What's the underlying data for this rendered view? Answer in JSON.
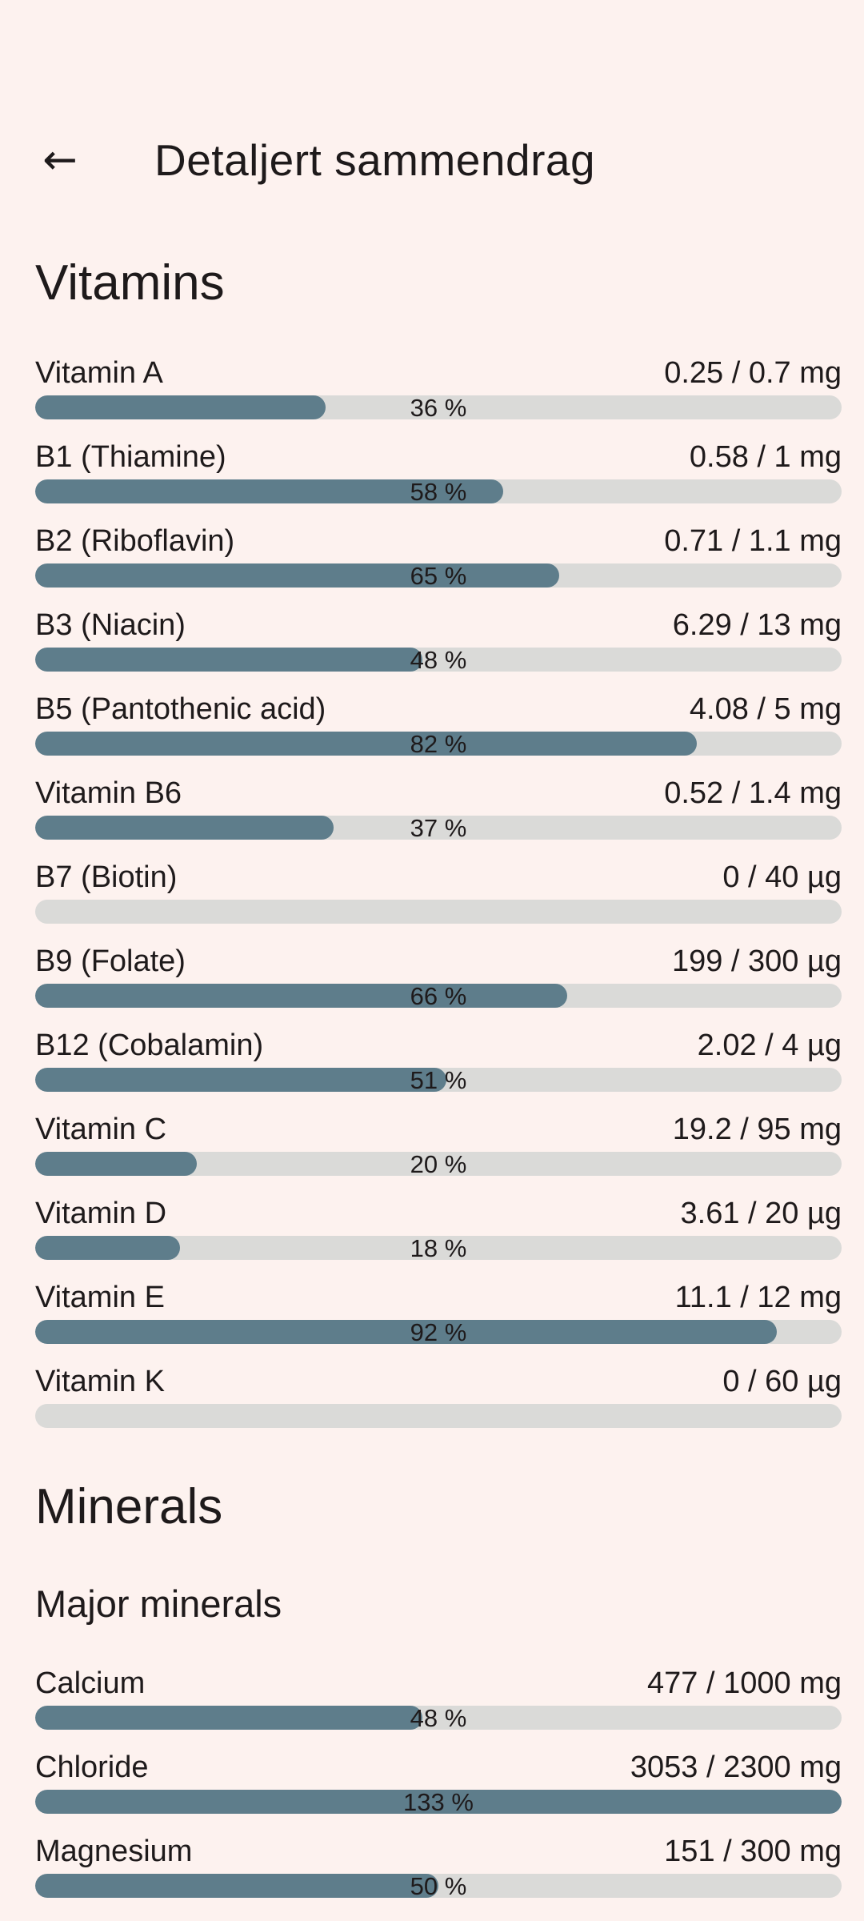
{
  "header": {
    "title": "Detaljert sammendrag",
    "back_icon": "arrow-left",
    "back_glyph": "←"
  },
  "colors": {
    "background": "#fdf2ef",
    "text": "#1e1a1b",
    "bar_fill": "#5e7d8b",
    "bar_track": "#dadad8"
  },
  "sections": [
    {
      "heading": "Vitamins",
      "rows": [
        {
          "name": "Vitamin A",
          "amount": "0.25 / 0.7 mg",
          "percent_label": "36 %",
          "fill_percent": 36
        },
        {
          "name": "B1 (Thiamine)",
          "amount": "0.58 / 1 mg",
          "percent_label": "58 %",
          "fill_percent": 58
        },
        {
          "name": "B2 (Riboflavin)",
          "amount": "0.71 / 1.1 mg",
          "percent_label": "65 %",
          "fill_percent": 65
        },
        {
          "name": "B3 (Niacin)",
          "amount": "6.29 / 13 mg",
          "percent_label": "48 %",
          "fill_percent": 48
        },
        {
          "name": "B5 (Pantothenic acid)",
          "amount": "4.08 / 5 mg",
          "percent_label": "82 %",
          "fill_percent": 82
        },
        {
          "name": "Vitamin B6",
          "amount": "0.52 / 1.4 mg",
          "percent_label": "37 %",
          "fill_percent": 37
        },
        {
          "name": "B7 (Biotin)",
          "amount": "0 / 40 µg",
          "percent_label": "",
          "fill_percent": 0
        },
        {
          "name": "B9 (Folate)",
          "amount": "199 / 300 µg",
          "percent_label": "66 %",
          "fill_percent": 66
        },
        {
          "name": "B12 (Cobalamin)",
          "amount": "2.02 / 4 µg",
          "percent_label": "51 %",
          "fill_percent": 51
        },
        {
          "name": "Vitamin C",
          "amount": "19.2 / 95 mg",
          "percent_label": "20 %",
          "fill_percent": 20
        },
        {
          "name": "Vitamin D",
          "amount": "3.61 / 20 µg",
          "percent_label": "18 %",
          "fill_percent": 18
        },
        {
          "name": "Vitamin E",
          "amount": "11.1 / 12 mg",
          "percent_label": "92 %",
          "fill_percent": 92
        },
        {
          "name": "Vitamin K",
          "amount": "0 / 60 µg",
          "percent_label": "",
          "fill_percent": 0
        }
      ]
    },
    {
      "heading": "Minerals",
      "subheading": "Major minerals",
      "rows": [
        {
          "name": "Calcium",
          "amount": "477 / 1000 mg",
          "percent_label": "48 %",
          "fill_percent": 48
        },
        {
          "name": "Chloride",
          "amount": "3053 / 2300 mg",
          "percent_label": "133 %",
          "fill_percent": 100
        },
        {
          "name": "Magnesium",
          "amount": "151 / 300 mg",
          "percent_label": "50 %",
          "fill_percent": 50
        }
      ]
    }
  ]
}
